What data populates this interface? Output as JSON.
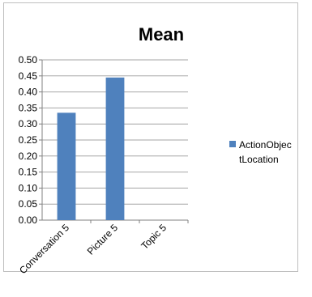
{
  "chart_data": {
    "type": "bar",
    "title": "Mean",
    "categories": [
      "Conversation 5",
      "Picture 5",
      "Topic 5"
    ],
    "series": [
      {
        "name": "ActionObjectLocation",
        "values": [
          0.335,
          0.445,
          0
        ],
        "color": "#4f81bd"
      }
    ],
    "ylim": [
      0,
      0.5
    ],
    "yticks": [
      "0.00",
      "0.05",
      "0.10",
      "0.15",
      "0.20",
      "0.25",
      "0.30",
      "0.35",
      "0.40",
      "0.45",
      "0.50"
    ],
    "grid": true,
    "legend_position": "right"
  }
}
